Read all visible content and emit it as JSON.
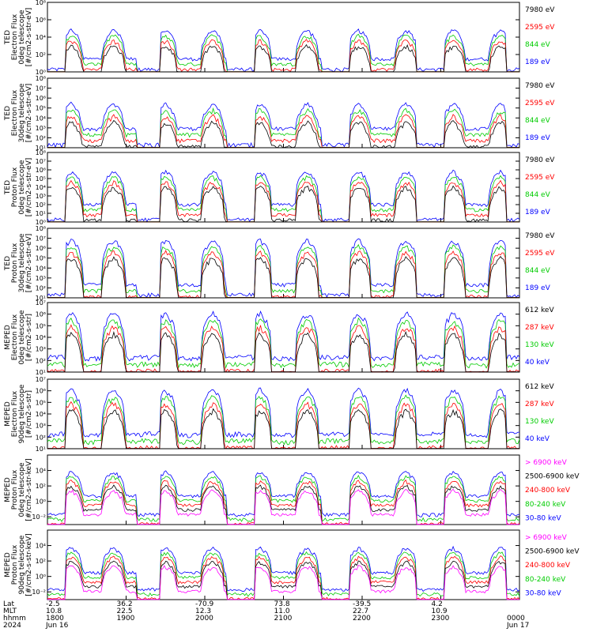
{
  "chart_data": [
    {
      "type": "line",
      "instrument": "TED",
      "ylabel": [
        "TED",
        "Electron Flux",
        "0deg telescope",
        "[#/cm2-s-str-eV]"
      ],
      "ylim": [
        1,
        100000000
      ],
      "y_scale": "log",
      "y_ticks": [
        1,
        100,
        10000,
        1000000,
        100000000
      ],
      "y_tick_labels": [
        "10⁰",
        "10²",
        "10⁴",
        "10⁶",
        "10⁸"
      ],
      "base": 30,
      "peak": 100000,
      "floor": 1,
      "legend": [
        {
          "label": "7980 eV",
          "color": "#000000"
        },
        {
          "label": "2595 eV",
          "color": "#ff0000"
        },
        {
          "label": "844 eV",
          "color": "#00cc00"
        },
        {
          "label": "189 eV",
          "color": "#0000ff"
        }
      ]
    },
    {
      "type": "line",
      "instrument": "TED",
      "ylabel": [
        "TED",
        "Electron Flux",
        "30deg telescope",
        "[#/cm2-s-str-eV]"
      ],
      "ylim": [
        10,
        100000000
      ],
      "y_scale": "log",
      "y_ticks": [
        10,
        100,
        1000,
        10000,
        100000,
        1000000,
        10000000,
        100000000
      ],
      "y_tick_labels": [
        "10¹",
        "10²",
        "10³",
        "10⁴",
        "10⁵",
        "10⁶",
        "10⁷",
        "10⁸"
      ],
      "base": 800,
      "peak": 400000,
      "floor": 10,
      "legend": [
        {
          "label": "7980 eV",
          "color": "#000000"
        },
        {
          "label": "2595 eV",
          "color": "#ff0000"
        },
        {
          "label": "844 eV",
          "color": "#00cc00"
        },
        {
          "label": "189 eV",
          "color": "#0000ff"
        }
      ]
    },
    {
      "type": "line",
      "instrument": "TED",
      "ylabel": [
        "TED",
        "Proton Flux",
        "0deg telescope",
        "[#/cm2-s-str-eV]"
      ],
      "ylim": [
        1,
        100000000
      ],
      "y_scale": "log",
      "y_ticks": [
        1,
        10,
        100,
        1000,
        10000,
        100000,
        1000000,
        10000000,
        100000000
      ],
      "y_tick_labels": [
        "10⁰",
        "10¹",
        "10²",
        "10³",
        "10⁴",
        "10⁵",
        "10⁶",
        "10⁷",
        "10⁸"
      ],
      "base": 100,
      "peak": 1000000,
      "floor": 1,
      "legend": [
        {
          "label": "7980 eV",
          "color": "#000000"
        },
        {
          "label": "2595 eV",
          "color": "#ff0000"
        },
        {
          "label": "844 eV",
          "color": "#00cc00"
        },
        {
          "label": "189 eV",
          "color": "#0000ff"
        }
      ]
    },
    {
      "type": "line",
      "instrument": "TED",
      "ylabel": [
        "TED",
        "Proton Flux",
        "30deg telescope",
        "[#/cm2-s-str-eV]"
      ],
      "ylim": [
        10,
        100000000
      ],
      "y_scale": "log",
      "y_ticks": [
        10,
        100,
        1000,
        10000,
        100000,
        1000000,
        10000000,
        100000000
      ],
      "y_tick_labels": [
        "10¹",
        "10²",
        "10³",
        "10⁴",
        "10⁵",
        "10⁶",
        "10⁷",
        "10⁸"
      ],
      "base": 200,
      "peak": 10000000,
      "floor": 10,
      "legend": [
        {
          "label": "7980 eV",
          "color": "#000000"
        },
        {
          "label": "2595 eV",
          "color": "#ff0000"
        },
        {
          "label": "844 eV",
          "color": "#00cc00"
        },
        {
          "label": "189 eV",
          "color": "#0000ff"
        }
      ]
    },
    {
      "type": "line",
      "instrument": "MEPED",
      "ylabel": [
        "MEPED",
        "Electron Flux",
        "0deg telescope",
        "[#/cm2-s-str]"
      ],
      "ylim": [
        10,
        10000000
      ],
      "y_scale": "log",
      "y_ticks": [
        10,
        100,
        1000,
        10000,
        100000,
        1000000,
        10000000
      ],
      "y_tick_labels": [
        "10¹",
        "10²",
        "10³",
        "10⁴",
        "10⁵",
        "10⁶",
        "10⁷"
      ],
      "base": 150,
      "peak": 2000000,
      "floor": 100,
      "legend": [
        {
          "label": "612 keV",
          "color": "#000000"
        },
        {
          "label": "287 keV",
          "color": "#ff0000"
        },
        {
          "label": "130 keV",
          "color": "#00cc00"
        },
        {
          "label": "40 keV",
          "color": "#0000ff"
        }
      ]
    },
    {
      "type": "line",
      "instrument": "MEPED",
      "ylabel": [
        "MEPED",
        "Electron Flux",
        "90deg telescope",
        "[#/cm2-s-str]"
      ],
      "ylim": [
        10,
        10000000
      ],
      "y_scale": "log",
      "y_ticks": [
        10,
        100,
        1000,
        10000,
        100000,
        1000000,
        10000000
      ],
      "y_tick_labels": [
        "10¹",
        "10²",
        "10³",
        "10⁴",
        "10⁵",
        "10⁶",
        "10⁷"
      ],
      "base": 150,
      "peak": 2000000,
      "floor": 100,
      "legend": [
        {
          "label": "612 keV",
          "color": "#000000"
        },
        {
          "label": "287 keV",
          "color": "#ff0000"
        },
        {
          "label": "130 keV",
          "color": "#00cc00"
        },
        {
          "label": "40 keV",
          "color": "#0000ff"
        }
      ]
    },
    {
      "type": "line",
      "instrument": "MEPED",
      "ylabel": [
        "MEPED",
        "Proton Flux",
        "0deg telescope",
        "[#/cm2-s-str-keV]"
      ],
      "ylim": [
        0.001,
        1000000
      ],
      "y_scale": "log",
      "y_ticks": [
        0.01,
        1,
        100,
        10000
      ],
      "y_tick_labels": [
        "10⁻²",
        "10⁰",
        "10²",
        "10⁴"
      ],
      "base": 5,
      "peak": 10000,
      "floor": 0.01,
      "legend": [
        {
          "label": "> 6900 keV",
          "color": "#ff00ff"
        },
        {
          "label": "2500-6900 keV",
          "color": "#000000"
        },
        {
          "label": "240-800 keV",
          "color": "#ff0000"
        },
        {
          "label": "80-240 keV",
          "color": "#00cc00"
        },
        {
          "label": "30-80 keV",
          "color": "#0000ff"
        }
      ]
    },
    {
      "type": "line",
      "instrument": "MEPED",
      "ylabel": [
        "MEPED",
        "Proton Flux",
        "90deg telescope",
        "[#/cm2-s-str-keV]"
      ],
      "ylim": [
        0.001,
        1000000
      ],
      "y_scale": "log",
      "y_ticks": [
        0.01,
        1,
        100,
        10000
      ],
      "y_tick_labels": [
        "10⁻²",
        "10⁰",
        "10²",
        "10⁴"
      ],
      "base": 3,
      "peak": 8000,
      "floor": 0.01,
      "legend": [
        {
          "label": "> 6900 keV",
          "color": "#ff00ff"
        },
        {
          "label": "2500-6900 keV",
          "color": "#000000"
        },
        {
          "label": "240-800 keV",
          "color": "#ff0000"
        },
        {
          "label": "80-240 keV",
          "color": "#00cc00"
        },
        {
          "label": "30-80 keV",
          "color": "#0000ff"
        }
      ]
    }
  ],
  "time_axis": {
    "row_labels": [
      "Lat",
      "MLT",
      "hhmm",
      "2024"
    ],
    "columns": [
      {
        "lat": "-2.5",
        "mlt": "10.8",
        "hhmm": "1800",
        "date": "Jun 16"
      },
      {
        "lat": "36.2",
        "mlt": "22.5",
        "hhmm": "1900",
        "date": ""
      },
      {
        "lat": "-70.9",
        "mlt": "12.3",
        "hhmm": "2000",
        "date": ""
      },
      {
        "lat": "73.8",
        "mlt": "11.0",
        "hhmm": "2100",
        "date": ""
      },
      {
        "lat": "-39.5",
        "mlt": "22.7",
        "hhmm": "2200",
        "date": ""
      },
      {
        "lat": "4.2",
        "mlt": "10.9",
        "hhmm": "2300",
        "date": ""
      },
      {
        "lat": "",
        "mlt": "",
        "hhmm": "0000",
        "date": "Jun 17"
      }
    ]
  },
  "passes": [
    0.05,
    0.14,
    0.25,
    0.35,
    0.45,
    0.55,
    0.66,
    0.76,
    0.86,
    0.96
  ],
  "active_bands": [
    [
      0.04,
      0.19
    ],
    [
      0.24,
      0.38
    ],
    [
      0.44,
      0.58
    ],
    [
      0.64,
      0.78
    ],
    [
      0.84,
      0.97
    ]
  ]
}
